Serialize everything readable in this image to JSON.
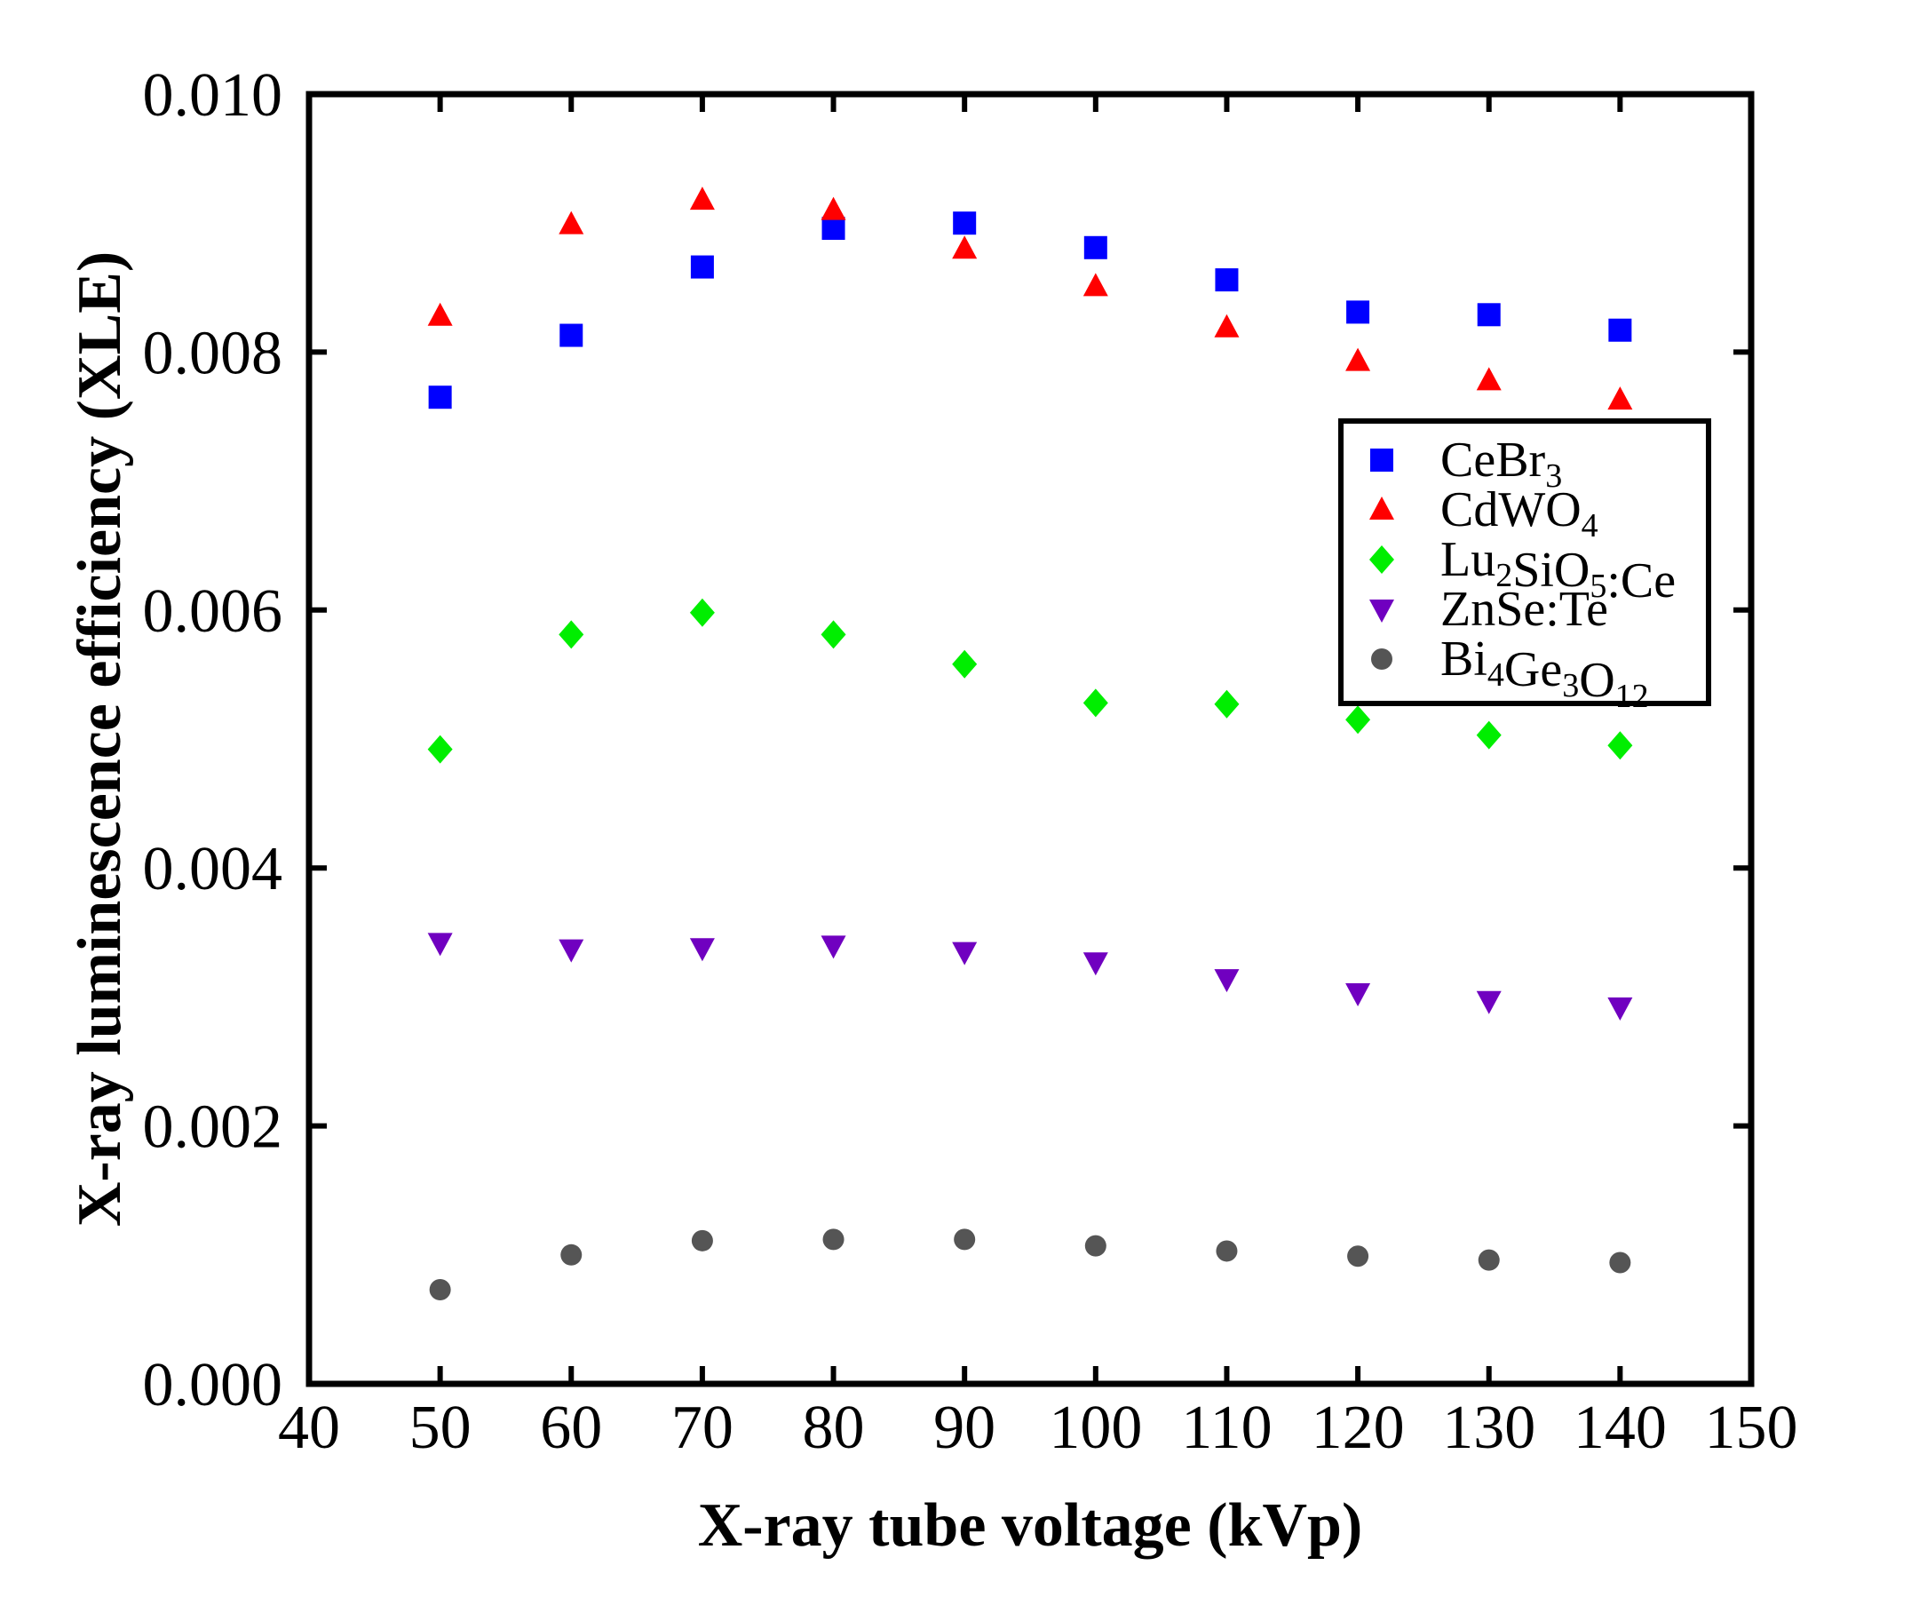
{
  "chart_data": {
    "type": "scatter",
    "title": "",
    "xlabel": "X-ray tube voltage (kVp)",
    "ylabel": "X-ray luminescence efficiency (XLE)",
    "xlim": [
      40,
      150
    ],
    "ylim": [
      0.0,
      0.01
    ],
    "xticks": [
      40,
      50,
      60,
      70,
      80,
      90,
      100,
      110,
      120,
      130,
      140,
      150
    ],
    "yticks": [
      0.0,
      0.002,
      0.004,
      0.006,
      0.008,
      0.01
    ],
    "xtick_labels": [
      "40",
      "50",
      "60",
      "70",
      "80",
      "90",
      "100",
      "110",
      "120",
      "130",
      "140",
      "150"
    ],
    "ytick_labels": [
      "0.000",
      "0.002",
      "0.004",
      "0.006",
      "0.008",
      "0.010"
    ],
    "grid": false,
    "legend_position": "top-right",
    "x": [
      50,
      60,
      70,
      80,
      90,
      100,
      110,
      120,
      130,
      140
    ],
    "series": [
      {
        "name": "CeBr3",
        "label": {
          "base": "CeBr",
          "sub": "3",
          "tail": ""
        },
        "marker": "square",
        "color": "#0000ff",
        "values": [
          0.00765,
          0.00813,
          0.00866,
          0.00896,
          0.009,
          0.00881,
          0.00856,
          0.00831,
          0.00829,
          0.00817
        ]
      },
      {
        "name": "CdWO4",
        "label": {
          "base": "CdWO",
          "sub": "4",
          "tail": ""
        },
        "marker": "triangle-up",
        "color": "#ff0000",
        "values": [
          0.00828,
          0.00899,
          0.00918,
          0.0091,
          0.0088,
          0.00851,
          0.00819,
          0.00793,
          0.00778,
          0.00763
        ]
      },
      {
        "name": "Lu2SiO5:Ce",
        "label": {
          "base": "Lu",
          "sub": "2",
          "tail": "SiO5:Ce"
        },
        "marker": "diamond",
        "color": "#00ee00",
        "values": [
          0.00492,
          0.00581,
          0.00598,
          0.00581,
          0.00558,
          0.00528,
          0.00527,
          0.00515,
          0.00503,
          0.00495
        ]
      },
      {
        "name": "ZnSe:Te",
        "label": {
          "base": "ZnSe:Te",
          "sub": "",
          "tail": ""
        },
        "marker": "triangle-down",
        "color": "#7000c0",
        "values": [
          0.00342,
          0.00337,
          0.00338,
          0.0034,
          0.00335,
          0.00327,
          0.00314,
          0.00303,
          0.00297,
          0.00292
        ]
      },
      {
        "name": "Bi4Ge3O12",
        "label": {
          "base": "Bi",
          "sub": "4",
          "tail": "Ge3O12"
        },
        "marker": "circle",
        "color": "#555555",
        "values": [
          0.00073,
          0.001,
          0.00111,
          0.00112,
          0.00112,
          0.00107,
          0.00103,
          0.00099,
          0.00096,
          0.00094
        ]
      }
    ]
  }
}
